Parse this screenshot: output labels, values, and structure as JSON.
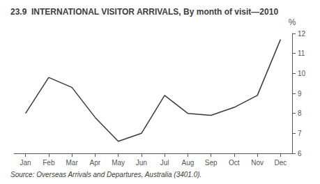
{
  "chart_data": {
    "type": "line",
    "title": "23.9  INTERNATIONAL VISITOR ARRIVALS, By month of visit—2010",
    "y_label": "%",
    "annotations": [
      "Source: Overseas Arrivals and Departures, Australia (3401.0)."
    ],
    "categories": [
      "Jan",
      "Feb",
      "Mar",
      "Apr",
      "May",
      "Jun",
      "Jul",
      "Aug",
      "Sep",
      "Oct",
      "Nov",
      "Dec"
    ],
    "values": [
      8.0,
      9.8,
      9.3,
      7.8,
      6.6,
      7.0,
      8.9,
      8.0,
      7.9,
      8.3,
      8.9,
      11.7
    ],
    "color": "#3a3a3a",
    "ylim": [
      6,
      12
    ],
    "yticks": [
      6,
      7,
      8,
      9,
      10,
      11,
      12
    ],
    "grid": false
  }
}
